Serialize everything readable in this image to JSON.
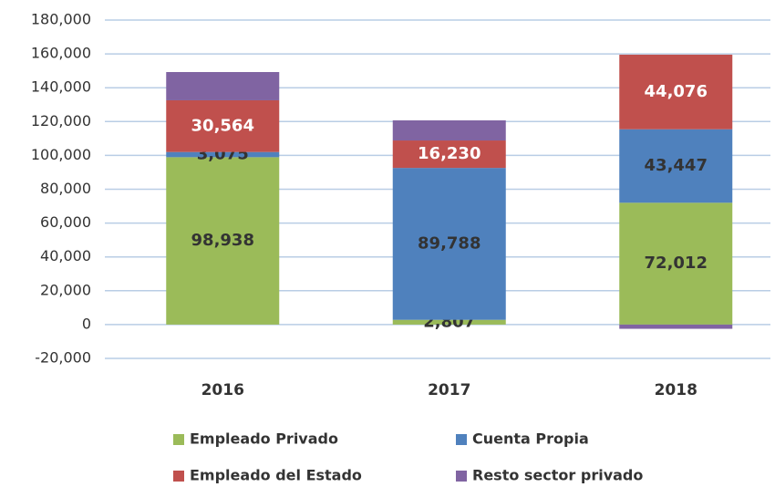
{
  "chart_data": {
    "type": "stacked_bar",
    "categories": [
      "2016",
      "2017",
      "2018"
    ],
    "series": [
      {
        "name": "Empleado Privado",
        "color": "#9bbb59",
        "label_color": "#333333",
        "values": [
          98938,
          2807,
          72012
        ],
        "value_labels": [
          "98,938",
          "2,807",
          "72,012"
        ]
      },
      {
        "name": "Cuenta Propia",
        "color": "#4f81bd",
        "label_color": "#333333",
        "values": [
          3075,
          89788,
          43447
        ],
        "value_labels": [
          "3,075",
          "89,788",
          "43,447"
        ]
      },
      {
        "name": "Empleado del Estado",
        "color": "#c0504d",
        "label_color": "#ffffff",
        "values": [
          30564,
          16230,
          44076
        ],
        "value_labels": [
          "30,564",
          "16,230",
          "44,076"
        ]
      },
      {
        "name": "Resto sector privado",
        "color": "#8064a2",
        "values": [
          16700,
          11900,
          -2500
        ]
      }
    ],
    "ylim": [
      -20000,
      180000
    ],
    "yticks": [
      {
        "value": -20000,
        "label": "-20,000"
      },
      0,
      {
        "value": 20000,
        "label": "20,000"
      },
      {
        "value": 40000,
        "label": "40,000"
      },
      {
        "value": 60000,
        "label": "60,000"
      },
      {
        "value": 80000,
        "label": "80,000"
      },
      {
        "value": 100000,
        "label": "100,000"
      },
      {
        "value": 120000,
        "label": "120,000"
      },
      {
        "value": 140000,
        "label": "140,000"
      },
      {
        "value": 160000,
        "label": "160,000"
      },
      {
        "value": 180000,
        "label": "180,000"
      }
    ],
    "grid": true,
    "legend": "bottom"
  }
}
